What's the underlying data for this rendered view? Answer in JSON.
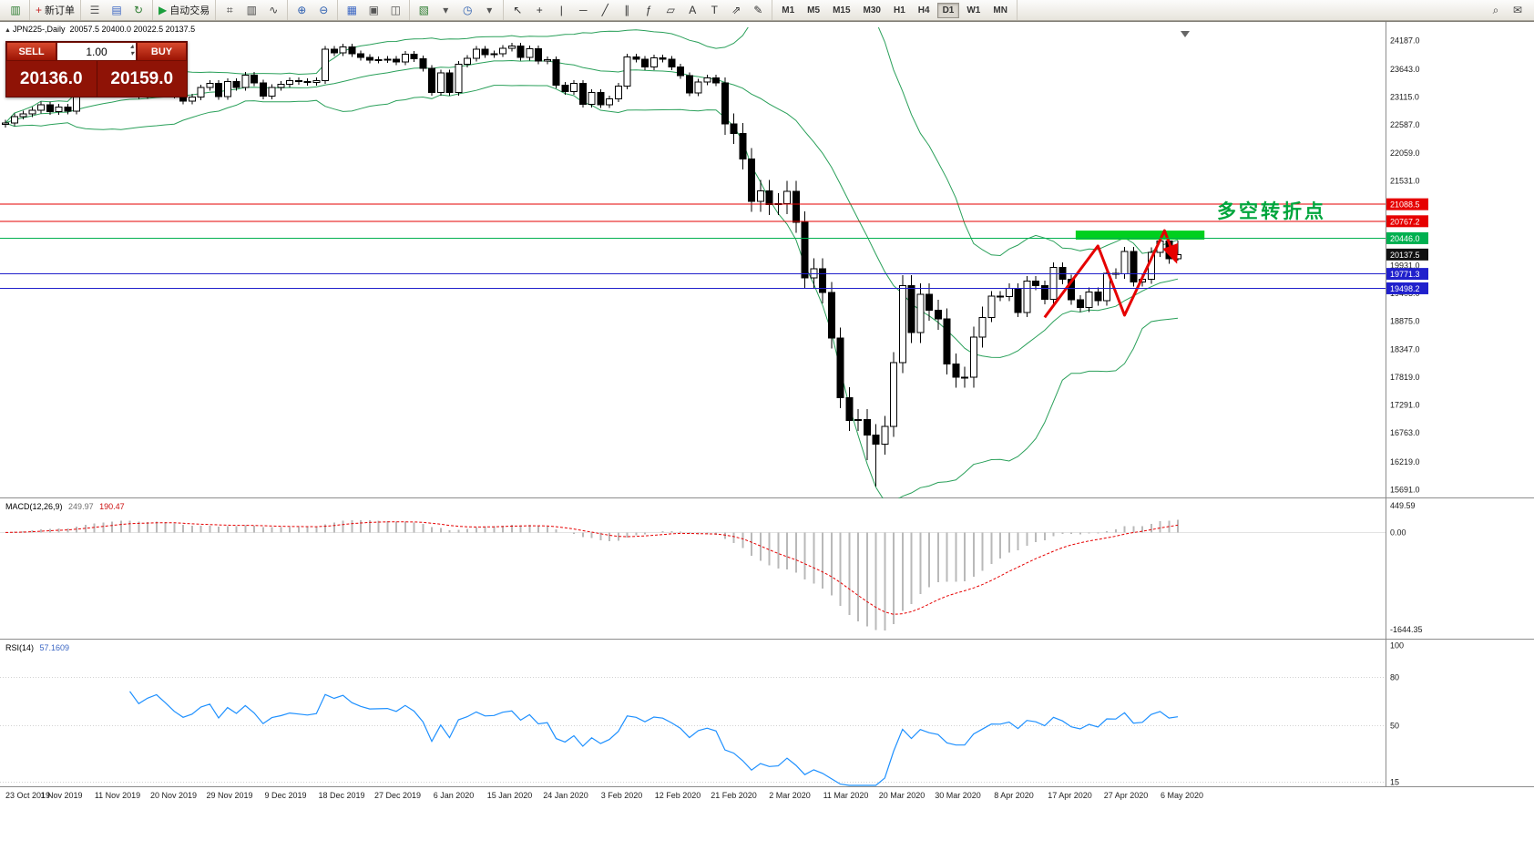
{
  "toolbar": {
    "groups": [
      {
        "items": [
          {
            "name": "app-chart-icon",
            "glyph": "▥",
            "color": "#2e7d32"
          }
        ]
      },
      {
        "items": [
          {
            "name": "new-order-button",
            "glyph": "+",
            "color": "#c62828",
            "label": "新订单"
          }
        ]
      },
      {
        "items": [
          {
            "name": "experts-icon",
            "glyph": "☰",
            "color": "#555555"
          },
          {
            "name": "profiles-icon",
            "glyph": "▤",
            "color": "#3b66c4"
          },
          {
            "name": "refresh-icon",
            "glyph": "↻",
            "color": "#2e7d32"
          }
        ]
      },
      {
        "items": [
          {
            "name": "autotrading-button",
            "glyph": "▶",
            "color": "#1a9e3c",
            "label": "自动交易"
          }
        ]
      },
      {
        "items": [
          {
            "name": "bar-chart-icon",
            "glyph": "⌗",
            "color": "#444444"
          },
          {
            "name": "candlestick-icon",
            "glyph": "▥",
            "color": "#444444"
          },
          {
            "name": "line-chart-icon",
            "glyph": "∿",
            "color": "#444444"
          }
        ]
      },
      {
        "items": [
          {
            "name": "zoom-in-icon",
            "glyph": "⊕",
            "color": "#2a5db0"
          },
          {
            "name": "zoom-out-icon",
            "glyph": "⊖",
            "color": "#2a5db0"
          }
        ]
      },
      {
        "items": [
          {
            "name": "tile-windows-icon",
            "glyph": "▦",
            "color": "#3b66c4"
          },
          {
            "name": "cascade-windows-icon",
            "glyph": "▣",
            "color": "#555555"
          },
          {
            "name": "arrange-windows-icon",
            "glyph": "◫",
            "color": "#555555"
          }
        ]
      },
      {
        "items": [
          {
            "name": "new-chart-icon",
            "glyph": "▧",
            "color": "#2e7d32"
          },
          {
            "name": "chart-profiles-dropdown-icon",
            "glyph": "▾",
            "color": "#555555"
          },
          {
            "name": "periods-icon",
            "glyph": "◷",
            "color": "#2a5db0"
          },
          {
            "name": "templates-dropdown-icon",
            "glyph": "▾",
            "color": "#555555"
          }
        ]
      },
      {
        "items": [
          {
            "name": "cursor-icon",
            "glyph": "↖",
            "color": "#333333"
          },
          {
            "name": "crosshair-icon",
            "glyph": "+",
            "color": "#333333"
          },
          {
            "name": "vertical-line-icon",
            "glyph": "|",
            "color": "#333333"
          },
          {
            "name": "horizontal-line-icon",
            "glyph": "─",
            "color": "#333333"
          },
          {
            "name": "trendline-icon",
            "glyph": "╱",
            "color": "#333333"
          },
          {
            "name": "channel-icon",
            "glyph": "∥",
            "color": "#333333"
          },
          {
            "name": "fibonacci-icon",
            "glyph": "ƒ",
            "color": "#333333"
          },
          {
            "name": "shapes-icon",
            "glyph": "▱",
            "color": "#333333"
          },
          {
            "name": "text-icon",
            "glyph": "A",
            "color": "#333333"
          },
          {
            "name": "text-label-icon",
            "glyph": "T",
            "color": "#333333"
          },
          {
            "name": "arrows-icon",
            "glyph": "⇗",
            "color": "#333333"
          },
          {
            "name": "edit-icon",
            "glyph": "✎",
            "color": "#333333"
          }
        ]
      }
    ],
    "timeframes": [
      "M1",
      "M5",
      "M15",
      "M30",
      "H1",
      "H4",
      "D1",
      "W1",
      "MN"
    ],
    "active_timeframe": "D1",
    "right_icons": [
      {
        "name": "search-icon",
        "glyph": "⌕",
        "color": "#444444"
      },
      {
        "name": "feedback-icon",
        "glyph": "✉",
        "color": "#444444"
      }
    ]
  },
  "trade_panel": {
    "sell_label": "SELL",
    "buy_label": "BUY",
    "volume": "1.00",
    "volume_up_glyph": "▴",
    "volume_down_glyph": "▾",
    "sell_price": "20136.0",
    "buy_price": "20159.0"
  },
  "chart": {
    "collapse_glyph": "▲",
    "symbol_period": "JPN225-,Daily",
    "ohlc": "20057.5 20400.0 20022.5 20137.5"
  },
  "chart_data": {
    "type": "candlestick",
    "symbol": "JPN225-",
    "timeframe": "Daily",
    "last_ohlc": {
      "open": 20057.5,
      "high": 20400.0,
      "low": 20022.5,
      "close": 20137.5
    },
    "y_range": [
      15560,
      24400
    ],
    "y_ticks": [
      24187.0,
      23643.0,
      23115.0,
      22587.0,
      22059.0,
      21531.0,
      19931.0,
      19403.0,
      18875.0,
      18347.0,
      17819.0,
      17291.0,
      16763.0,
      16219.0,
      15691.0
    ],
    "x_labels": [
      "23 Oct 2019",
      "1 Nov 2019",
      "11 Nov 2019",
      "20 Nov 2019",
      "29 Nov 2019",
      "9 Dec 2019",
      "18 Dec 2019",
      "27 Dec 2019",
      "6 Jan 2020",
      "15 Jan 2020",
      "24 Jan 2020",
      "3 Feb 2020",
      "12 Feb 2020",
      "21 Feb 2020",
      "2 Mar 2020",
      "11 Mar 2020",
      "20 Mar 2020",
      "30 Mar 2020",
      "8 Apr 2020",
      "17 Apr 2020",
      "27 Apr 2020",
      "6 May 2020"
    ],
    "candles": [
      [
        22600,
        22685,
        22540,
        22625
      ],
      [
        22625,
        22810,
        22565,
        22750
      ],
      [
        22750,
        22860,
        22690,
        22800
      ],
      [
        22800,
        22927,
        22740,
        22867
      ],
      [
        22867,
        23034,
        22807,
        22974
      ],
      [
        22974,
        23034,
        22783,
        22843
      ],
      [
        22843,
        22987,
        22783,
        22927
      ],
      [
        22927,
        22987,
        22791,
        22851
      ],
      [
        22851,
        23312,
        22791,
        23252
      ],
      [
        23252,
        23364,
        23192,
        23304
      ],
      [
        23304,
        23390,
        23244,
        23330
      ],
      [
        23330,
        23452,
        23270,
        23392
      ],
      [
        23392,
        23452,
        23272,
        23332
      ],
      [
        23332,
        23580,
        23272,
        23520
      ],
      [
        23520,
        23580,
        23260,
        23320
      ],
      [
        23320,
        23380,
        23081,
        23141
      ],
      [
        23141,
        23363,
        23081,
        23303
      ],
      [
        23303,
        23477,
        23243,
        23417
      ],
      [
        23417,
        23477,
        23233,
        23293
      ],
      [
        23293,
        23353,
        23089,
        23149
      ],
      [
        23149,
        23209,
        22978,
        23038
      ],
      [
        23038,
        23173,
        22978,
        23113
      ],
      [
        23113,
        23353,
        23053,
        23293
      ],
      [
        23293,
        23433,
        23233,
        23373
      ],
      [
        23373,
        23433,
        23066,
        23126
      ],
      [
        23126,
        23469,
        23066,
        23409
      ],
      [
        23409,
        23469,
        23234,
        23294
      ],
      [
        23294,
        23590,
        23234,
        23530
      ],
      [
        23530,
        23590,
        23320,
        23380
      ],
      [
        23380,
        23440,
        23075,
        23135
      ],
      [
        23135,
        23360,
        23075,
        23300
      ],
      [
        23300,
        23414,
        23240,
        23354
      ],
      [
        23354,
        23490,
        23294,
        23430
      ],
      [
        23430,
        23490,
        23350,
        23410
      ],
      [
        23410,
        23470,
        23331,
        23391
      ],
      [
        23391,
        23484,
        23331,
        23424
      ],
      [
        23424,
        24083,
        23364,
        24023
      ],
      [
        24023,
        24083,
        23892,
        23952
      ],
      [
        23952,
        24126,
        23892,
        24066
      ],
      [
        24066,
        24126,
        23874,
        23934
      ],
      [
        23934,
        23994,
        23804,
        23864
      ],
      [
        23864,
        23924,
        23757,
        23817
      ],
      [
        23817,
        23881,
        23757,
        23821
      ],
      [
        23821,
        23890,
        23761,
        23830
      ],
      [
        23830,
        23890,
        23723,
        23783
      ],
      [
        23783,
        23985,
        23723,
        23925
      ],
      [
        23925,
        23985,
        23778,
        23838
      ],
      [
        23838,
        23898,
        23597,
        23657
      ],
      [
        23657,
        23717,
        23145,
        23205
      ],
      [
        23205,
        23635,
        23145,
        23575
      ],
      [
        23575,
        23635,
        23144,
        23204
      ],
      [
        23204,
        23799,
        23144,
        23739
      ],
      [
        23739,
        23911,
        23679,
        23851
      ],
      [
        23851,
        24085,
        23791,
        24025
      ],
      [
        24025,
        24085,
        23856,
        23916
      ],
      [
        23916,
        23993,
        23856,
        23933
      ],
      [
        23933,
        24101,
        23873,
        24041
      ],
      [
        24041,
        24144,
        23981,
        24084
      ],
      [
        24084,
        24144,
        23805,
        23865
      ],
      [
        23865,
        24091,
        23805,
        24031
      ],
      [
        24031,
        24091,
        23735,
        23795
      ],
      [
        23795,
        23887,
        23735,
        23827
      ],
      [
        23827,
        23887,
        23284,
        23344
      ],
      [
        23344,
        23404,
        23156,
        23216
      ],
      [
        23216,
        23439,
        23156,
        23379
      ],
      [
        23379,
        23439,
        22918,
        22978
      ],
      [
        22978,
        23265,
        22918,
        23205
      ],
      [
        23205,
        23265,
        22912,
        22972
      ],
      [
        22972,
        23145,
        22912,
        23085
      ],
      [
        23085,
        23380,
        23025,
        23320
      ],
      [
        23320,
        23933,
        23260,
        23873
      ],
      [
        23873,
        23933,
        23768,
        23828
      ],
      [
        23828,
        23888,
        23626,
        23686
      ],
      [
        23686,
        23921,
        23626,
        23861
      ],
      [
        23861,
        23921,
        23768,
        23828
      ],
      [
        23828,
        23888,
        23628,
        23688
      ],
      [
        23688,
        23748,
        23463,
        23523
      ],
      [
        23523,
        23583,
        23134,
        23194
      ],
      [
        23194,
        23461,
        23134,
        23401
      ],
      [
        23401,
        23539,
        23341,
        23479
      ],
      [
        23479,
        23539,
        23327,
        23387
      ],
      [
        23387,
        23487,
        22405,
        22605
      ],
      [
        22605,
        22805,
        22226,
        22426
      ],
      [
        22426,
        22626,
        21748,
        21948
      ],
      [
        21948,
        22148,
        20943,
        21143
      ],
      [
        21143,
        21544,
        20943,
        21344
      ],
      [
        21344,
        21544,
        20883,
        21083
      ],
      [
        21083,
        21300,
        20883,
        21100
      ],
      [
        21100,
        21529,
        20900,
        21329
      ],
      [
        21329,
        21529,
        20550,
        20750
      ],
      [
        20750,
        20950,
        19499,
        19699
      ],
      [
        19699,
        20067,
        19499,
        19867
      ],
      [
        19867,
        20067,
        19216,
        19416
      ],
      [
        19416,
        19616,
        18360,
        18560
      ],
      [
        18560,
        18760,
        17231,
        17431
      ],
      [
        17431,
        17631,
        16802,
        17002
      ],
      [
        17002,
        17212,
        16802,
        17012
      ],
      [
        17012,
        17212,
        16250,
        16727
      ],
      [
        16727,
        16927,
        15750,
        16553
      ],
      [
        16553,
        17088,
        16353,
        16888
      ],
      [
        16888,
        18292,
        16688,
        18092
      ],
      [
        18092,
        19747,
        17892,
        19547
      ],
      [
        19547,
        19747,
        18465,
        18665
      ],
      [
        18665,
        19589,
        18465,
        19389
      ],
      [
        19389,
        19589,
        18885,
        19085
      ],
      [
        19085,
        19285,
        18717,
        18917
      ],
      [
        18917,
        19117,
        17865,
        18065
      ],
      [
        18065,
        18265,
        17618,
        17818
      ],
      [
        17818,
        18018,
        17618,
        17820
      ],
      [
        17820,
        18776,
        17620,
        18576
      ],
      [
        18576,
        19150,
        18376,
        18950
      ],
      [
        18950,
        19443,
        18860,
        19353
      ],
      [
        19353,
        19443,
        19256,
        19346
      ],
      [
        19346,
        19589,
        19256,
        19499
      ],
      [
        19499,
        19589,
        18953,
        19043
      ],
      [
        19043,
        19728,
        18953,
        19638
      ],
      [
        19638,
        19728,
        19460,
        19550
      ],
      [
        19550,
        19640,
        19200,
        19290
      ],
      [
        19290,
        19987,
        19200,
        19897
      ],
      [
        19897,
        19987,
        19579,
        19669
      ],
      [
        19669,
        19759,
        19190,
        19280
      ],
      [
        19280,
        19370,
        19047,
        19137
      ],
      [
        19137,
        19519,
        19047,
        19429
      ],
      [
        19429,
        19519,
        19172,
        19262
      ],
      [
        19262,
        19873,
        19172,
        19783
      ],
      [
        19783,
        19873,
        19681,
        19771
      ],
      [
        19771,
        20283,
        19681,
        20193
      ],
      [
        20193,
        20283,
        19529,
        19619
      ],
      [
        19619,
        19764,
        19529,
        19674
      ],
      [
        19674,
        20269,
        19584,
        20179
      ],
      [
        20179,
        20480,
        20089,
        20390
      ],
      [
        20390,
        20480,
        19967,
        20057
      ],
      [
        20057.5,
        20400,
        20022.5,
        20137.5
      ]
    ],
    "overlays": {
      "bollinger": {
        "period": 20,
        "deviation": 2,
        "color": "#2aa05a"
      },
      "hlines": [
        {
          "value": 21088.5,
          "color": "#e60000"
        },
        {
          "value": 20767.2,
          "color": "#e60000"
        },
        {
          "value": 20446.0,
          "color": "#00b050"
        },
        {
          "value": 19771.3,
          "color": "#2020cc"
        },
        {
          "value": 19498.2,
          "color": "#2020cc"
        }
      ],
      "current_price": {
        "value": 20137.5,
        "color": "#111111"
      },
      "rect": {
        "i1": 120.5,
        "i2": 135,
        "p1": 20590,
        "p2": 20420,
        "color": "#00d01e"
      },
      "zigzag": {
        "color": "#e60000",
        "points": [
          [
            117,
            18950
          ],
          [
            123,
            20300
          ],
          [
            126,
            18990
          ],
          [
            130.5,
            20590
          ],
          [
            131.8,
            20010
          ]
        ]
      },
      "note": {
        "text": "多空转折点",
        "color": "#00a53c"
      }
    },
    "macd": {
      "label": "MACD(12,26,9)",
      "value_main": "249.97",
      "value_signal": "190.47",
      "fast": 12,
      "slow": 26,
      "signal": 9,
      "range": [
        -1780,
        560
      ],
      "y_ticks": [
        449.59,
        0,
        -1644.35
      ],
      "histogram_color": "#b9b9b9",
      "signal_color": "#e60000"
    },
    "rsi": {
      "label": "RSI(14)",
      "value": "57.1609",
      "period": 14,
      "range": [
        13,
        103
      ],
      "y_ticks": [
        100,
        80,
        50,
        15
      ],
      "levels": [
        80,
        50,
        15
      ],
      "line_color": "#1E90FF"
    }
  }
}
